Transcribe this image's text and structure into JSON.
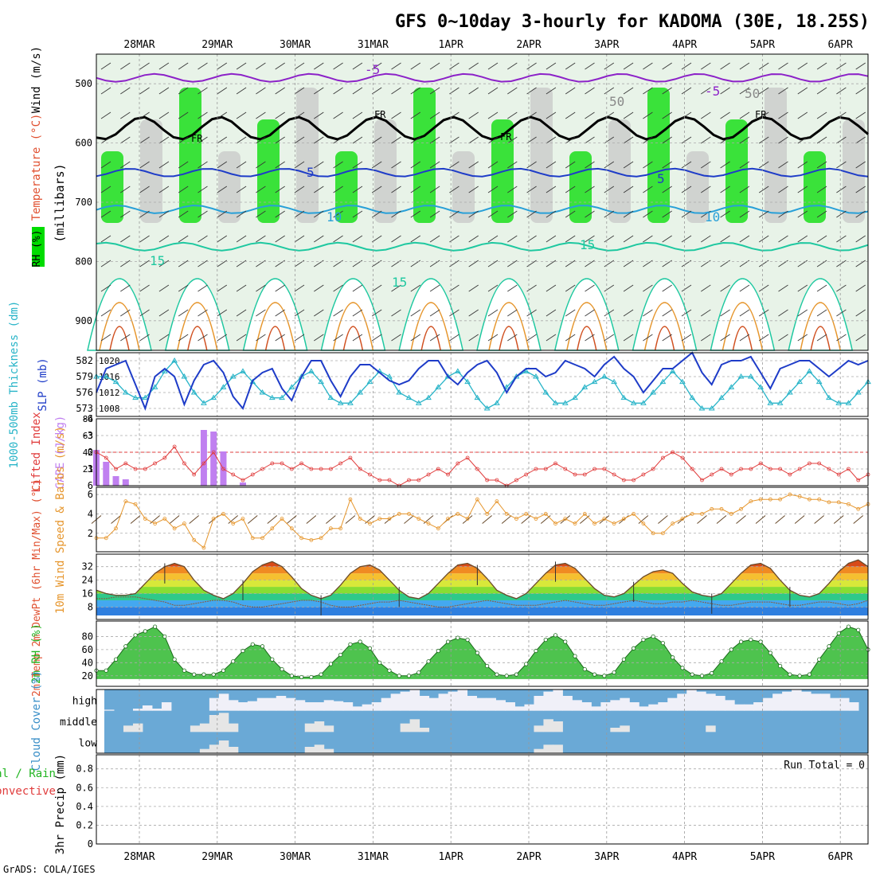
{
  "title": "GFS 0~10day 3-hourly for KADOMA (30E, 18.25S)",
  "credit": "GrADS: COLA/IGES",
  "dates": [
    "28MAR",
    "29MAR",
    "30MAR",
    "31MAR",
    "1APR",
    "2APR",
    "3APR",
    "4APR",
    "5APR",
    "6APR"
  ],
  "colors": {
    "rh_green": "#00dc00",
    "grey": "#c8c8c8",
    "slp": "#1e3cc8",
    "thick": "#28b4c8",
    "cape": "#c080f0",
    "li": "#e03c3c",
    "wind": "#e6962d",
    "rh2m": "#22b422",
    "cloud": "#6aa9d6",
    "cloud_clear": "#f0f0f8"
  },
  "chart_data": [
    {
      "type": "heatmap",
      "name": "upper-air",
      "ylabel": "(millibars)",
      "side_labels": [
        "Wind (m/s)",
        "Temperature (°C)",
        "RH (%)"
      ],
      "yticks": [
        500,
        600,
        700,
        800,
        900
      ],
      "ylim": [
        950,
        450
      ],
      "contour_labels": [
        "-5",
        "-5",
        "FR",
        "FR",
        "FR",
        "FR",
        "5",
        "5",
        "10",
        "10",
        "15",
        "15",
        "15",
        "50",
        "50"
      ],
      "isotherms": [
        {
          "label": "-5",
          "pressure": 490,
          "color": "#8c22c8"
        },
        {
          "label": "FR",
          "pressure": 575,
          "color": "#000000"
        },
        {
          "label": "5",
          "pressure": 650,
          "color": "#1e3cc8"
        },
        {
          "label": "10",
          "pressure": 712,
          "color": "#28a0d8"
        },
        {
          "label": "15",
          "pressure": 775,
          "color": "#1ec8a0"
        }
      ]
    },
    {
      "type": "line",
      "name": "slp-thickness",
      "ylabel_left": "1000-500mb Thickness (dm)",
      "ylabel_right": "SLP (mb)",
      "left_ticks": [
        573,
        576,
        579,
        582
      ],
      "right_ticks": [
        1008,
        1012,
        1016,
        1020
      ],
      "series": [
        {
          "name": "SLP",
          "axis": "right",
          "values": [
            1012,
            1018,
            1019,
            1020,
            1014,
            1008,
            1016,
            1018,
            1016,
            1009,
            1015,
            1019,
            1020,
            1017,
            1011,
            1008,
            1015,
            1017,
            1018,
            1013,
            1010,
            1016,
            1020,
            1020,
            1015,
            1011,
            1016,
            1019,
            1019,
            1017,
            1015,
            1014,
            1015,
            1018,
            1020,
            1020,
            1016,
            1014,
            1017,
            1019,
            1020,
            1017,
            1012,
            1016,
            1018,
            1018,
            1016,
            1017,
            1020,
            1019,
            1018,
            1016,
            1019,
            1021,
            1018,
            1016,
            1012,
            1015,
            1018,
            1018,
            1020,
            1022,
            1017,
            1014,
            1019,
            1020,
            1020,
            1021,
            1017,
            1013,
            1018,
            1019,
            1020,
            1020,
            1018,
            1016,
            1018,
            1020,
            1019,
            1020
          ]
        },
        {
          "name": "Thickness",
          "axis": "left",
          "values": [
            579,
            579,
            578,
            576,
            575,
            575,
            577,
            580,
            582,
            579,
            576,
            574,
            575,
            577,
            579,
            580,
            578,
            576,
            575,
            575,
            577,
            579,
            580,
            578,
            575,
            574,
            574,
            576,
            578,
            580,
            579,
            576,
            575,
            574,
            575,
            577,
            579,
            580,
            578,
            575,
            573,
            574,
            577,
            579,
            580,
            579,
            576,
            574,
            574,
            575,
            577,
            578,
            579,
            578,
            575,
            574,
            574,
            576,
            578,
            580,
            578,
            575,
            573,
            573,
            575,
            577,
            579,
            579,
            577,
            574,
            574,
            576,
            578,
            580,
            578,
            575,
            574,
            574,
            576,
            578
          ]
        }
      ]
    },
    {
      "type": "bar",
      "name": "cape-li",
      "ylabel_left": "Lifted Index",
      "ylabel_right": "CAPE (J/kg)",
      "left_ticks": [
        -6,
        -3,
        0,
        3,
        6
      ],
      "right_ticks": [
        21,
        42,
        63,
        84
      ],
      "series": [
        {
          "name": "CAPE",
          "values": [
            45,
            30,
            12,
            8,
            0,
            0,
            0,
            0,
            0,
            0,
            0,
            70,
            68,
            43,
            0,
            4,
            0,
            0,
            0,
            0,
            0,
            0,
            0,
            0,
            0,
            0,
            0,
            0,
            0,
            0,
            0,
            0,
            0,
            0,
            0,
            0,
            0,
            0,
            0,
            0,
            0,
            0,
            0,
            0,
            0,
            0,
            0,
            0,
            0,
            0,
            0,
            0,
            0,
            0,
            0,
            0,
            0,
            0,
            0,
            0,
            0,
            0,
            0,
            0,
            0,
            0,
            0,
            0,
            0,
            0,
            0,
            0,
            0,
            0,
            0,
            0,
            0,
            0,
            0,
            0
          ]
        },
        {
          "name": "Lifted Index",
          "values": [
            0,
            1,
            3,
            2,
            3,
            3,
            2,
            1,
            -1,
            2,
            4,
            2,
            0,
            3,
            4,
            5,
            4,
            3,
            2,
            2,
            3,
            2,
            3,
            3,
            3,
            2,
            1,
            3,
            4,
            5,
            5,
            6,
            5,
            5,
            4,
            3,
            4,
            2,
            1,
            3,
            5,
            5,
            6,
            5,
            4,
            3,
            3,
            2,
            3,
            4,
            4,
            3,
            3,
            4,
            5,
            5,
            4,
            3,
            1,
            0,
            1,
            3,
            5,
            4,
            3,
            4,
            3,
            3,
            2,
            3,
            3,
            4,
            3,
            2,
            2,
            3,
            4,
            3,
            5,
            4
          ]
        }
      ]
    },
    {
      "type": "line",
      "name": "wind-10m",
      "ylabel": "10m Wind Speed & Barbs (m/s)",
      "yticks": [
        2,
        4,
        6
      ],
      "series": [
        {
          "name": "Wind Speed",
          "values": [
            1.5,
            1.5,
            2.5,
            5.3,
            5,
            3.5,
            3,
            3.5,
            2.5,
            3,
            1.3,
            0.5,
            3.5,
            4,
            3,
            3.5,
            1.5,
            1.5,
            2.5,
            3.5,
            2.5,
            1.5,
            1.3,
            1.5,
            2.5,
            2.5,
            5.5,
            3.5,
            3,
            3.5,
            3.5,
            4,
            4,
            3.5,
            3,
            2.5,
            3.5,
            4,
            3.5,
            5.5,
            4,
            5.3,
            4,
            3.5,
            4,
            3.5,
            4,
            3,
            3.5,
            3,
            4,
            3,
            3.5,
            3,
            3.5,
            4,
            3,
            2,
            2,
            3,
            3.5,
            4,
            4,
            4.5,
            4.5,
            4,
            4.5,
            5.3,
            5.5,
            5.5,
            5.5,
            6,
            5.8,
            5.5,
            5.5,
            5.2,
            5.2,
            5,
            4.5,
            5
          ]
        }
      ]
    },
    {
      "type": "area",
      "name": "temp-2m",
      "ylabel": "2m Temp 2m DewPt (6hr Min/Max) (°C)",
      "yticks": [
        8,
        16,
        24,
        32
      ],
      "series": [
        {
          "name": "2m Temp",
          "values": [
            18,
            16,
            15,
            15,
            16,
            22,
            28,
            32,
            34,
            32,
            24,
            18,
            15,
            13,
            16,
            22,
            29,
            33,
            35,
            32,
            26,
            19,
            15,
            13,
            15,
            21,
            28,
            32,
            33,
            30,
            24,
            18,
            14,
            13,
            16,
            22,
            28,
            33,
            34,
            31,
            25,
            18,
            15,
            13,
            16,
            22,
            28,
            33,
            34,
            31,
            25,
            19,
            15,
            14,
            16,
            21,
            26,
            29,
            30,
            28,
            22,
            17,
            15,
            14,
            16,
            22,
            28,
            33,
            34,
            31,
            24,
            18,
            15,
            14,
            16,
            22,
            29,
            34,
            36,
            32
          ]
        },
        {
          "name": "2m DewPt",
          "values": [
            13,
            13,
            14,
            14,
            14,
            13,
            12,
            11,
            9,
            9,
            10,
            11,
            12,
            12,
            11,
            9,
            8,
            8,
            9,
            10,
            11,
            12,
            12,
            11,
            9,
            8,
            8,
            9,
            10,
            11,
            11,
            12,
            11,
            10,
            9,
            8,
            8,
            9,
            10,
            11,
            12,
            11,
            10,
            9,
            9,
            9,
            10,
            11,
            12,
            11,
            10,
            9,
            9,
            10,
            11,
            12,
            11,
            10,
            10,
            11,
            11,
            12,
            11,
            10,
            9,
            9,
            10,
            11,
            11,
            11,
            10,
            9,
            9,
            10,
            11,
            11,
            10,
            9,
            10,
            12
          ]
        }
      ]
    },
    {
      "type": "area",
      "name": "rh-2m",
      "ylabel": "2m RH (%)",
      "yticks": [
        20,
        40,
        60,
        80
      ],
      "series": [
        {
          "name": "2m RH",
          "values": [
            28,
            28,
            45,
            65,
            82,
            88,
            95,
            80,
            45,
            28,
            22,
            22,
            22,
            28,
            42,
            58,
            68,
            65,
            45,
            30,
            20,
            18,
            18,
            22,
            38,
            52,
            68,
            72,
            62,
            40,
            28,
            20,
            20,
            25,
            42,
            58,
            72,
            78,
            75,
            55,
            35,
            22,
            20,
            22,
            38,
            58,
            75,
            82,
            72,
            50,
            30,
            22,
            20,
            25,
            45,
            62,
            75,
            80,
            70,
            48,
            32,
            22,
            20,
            24,
            42,
            60,
            72,
            75,
            72,
            55,
            35,
            22,
            20,
            22,
            45,
            65,
            85,
            95,
            90,
            60
          ]
        }
      ]
    },
    {
      "type": "heatmap",
      "name": "cloud-cover",
      "ylabel": "Cloud Cover (%)",
      "row_labels": [
        "high",
        "middle",
        "low"
      ],
      "series": [
        {
          "name": "high",
          "values": [
            5,
            0,
            0,
            10,
            25,
            10,
            40,
            0,
            0,
            0,
            0,
            60,
            80,
            50,
            40,
            45,
            60,
            60,
            70,
            60,
            50,
            40,
            40,
            50,
            45,
            40,
            20,
            30,
            40,
            60,
            80,
            90,
            100,
            70,
            60,
            80,
            90,
            100,
            70,
            60,
            60,
            50,
            40,
            20,
            30,
            70,
            90,
            100,
            70,
            50,
            40,
            20,
            40,
            50,
            60,
            40,
            20,
            30,
            40,
            60,
            80,
            100,
            90,
            80,
            70,
            50,
            30,
            30,
            40,
            60,
            80,
            90,
            100,
            90,
            80,
            80,
            60,
            60,
            40,
            0
          ]
        },
        {
          "name": "middle",
          "values": [
            0,
            0,
            30,
            40,
            0,
            0,
            0,
            0,
            0,
            30,
            40,
            80,
            90,
            40,
            0,
            0,
            0,
            0,
            0,
            0,
            0,
            40,
            50,
            30,
            0,
            0,
            0,
            0,
            0,
            0,
            0,
            40,
            60,
            20,
            0,
            0,
            0,
            0,
            0,
            0,
            0,
            0,
            0,
            0,
            0,
            30,
            60,
            50,
            0,
            0,
            0,
            0,
            0,
            20,
            30,
            0,
            0,
            0,
            0,
            0,
            0,
            0,
            0,
            30,
            0,
            0,
            0,
            0,
            0,
            0,
            0,
            0,
            0,
            0,
            0,
            0,
            0,
            0,
            0,
            0
          ]
        },
        {
          "name": "low",
          "values": [
            0,
            0,
            0,
            0,
            0,
            0,
            0,
            0,
            0,
            0,
            20,
            40,
            60,
            30,
            0,
            0,
            0,
            0,
            0,
            0,
            0,
            30,
            40,
            20,
            0,
            0,
            0,
            0,
            0,
            0,
            0,
            0,
            0,
            0,
            0,
            0,
            0,
            0,
            0,
            0,
            0,
            0,
            0,
            0,
            0,
            20,
            40,
            40,
            0,
            0,
            0,
            0,
            0,
            0,
            0,
            0,
            0,
            0,
            0,
            0,
            0,
            0,
            0,
            0,
            0,
            0,
            0,
            0,
            0,
            0,
            0,
            0,
            0,
            0,
            0,
            0,
            0,
            0,
            0,
            0
          ]
        }
      ]
    },
    {
      "type": "bar",
      "name": "precip-3hr",
      "ylabel": "3hr Precip (mm)",
      "side_labels": [
        "Total / Rain",
        "Convective"
      ],
      "yticks": [
        0,
        0.2,
        0.4,
        0.6,
        0.8
      ],
      "ylim": [
        0,
        0.95
      ],
      "annotation": "Run Total = 0",
      "series": [
        {
          "name": "Total / Rain",
          "values": []
        },
        {
          "name": "Convective",
          "values": []
        }
      ]
    }
  ]
}
